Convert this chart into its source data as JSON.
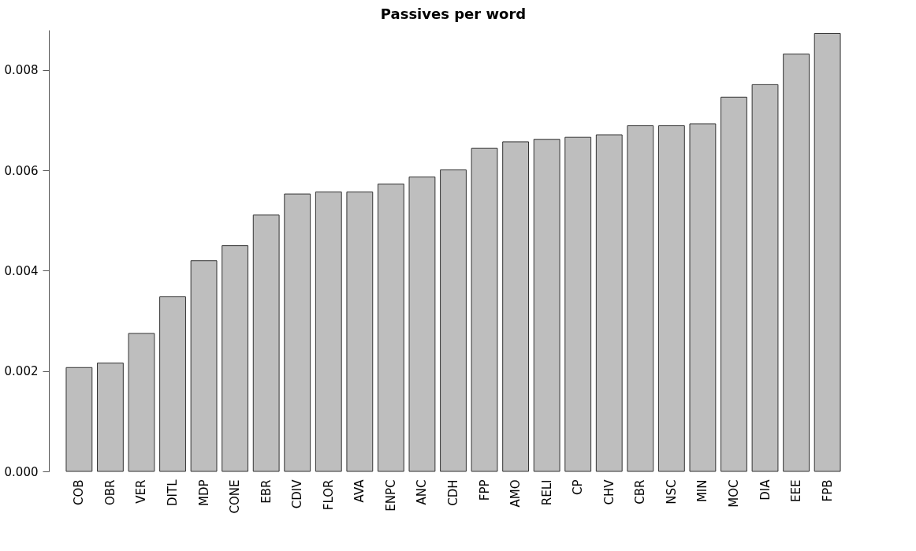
{
  "chart_data": {
    "type": "bar",
    "title": "Passives per word",
    "categories": [
      "COB",
      "OBR",
      "VER",
      "DITL",
      "MDP",
      "CONE",
      "EBR",
      "CDIV",
      "FLOR",
      "AVA",
      "ENPC",
      "ANC",
      "CDH",
      "FPP",
      "AMO",
      "RELI",
      "CP",
      "CHV",
      "CBR",
      "NSC",
      "MIN",
      "MOC",
      "DIA",
      "EEE",
      "FPB"
    ],
    "values": [
      0.00207,
      0.00216,
      0.00275,
      0.00348,
      0.0042,
      0.0045,
      0.00511,
      0.00553,
      0.00557,
      0.00557,
      0.00573,
      0.00587,
      0.00601,
      0.00644,
      0.00657,
      0.00662,
      0.00666,
      0.00671,
      0.00689,
      0.00689,
      0.00693,
      0.00746,
      0.00771,
      0.00832,
      0.00873
    ],
    "color": "#bebebe",
    "ylim": [
      0,
      0.0088
    ],
    "yticks": [
      {
        "value": 0,
        "label": "0.000"
      },
      {
        "value": 0.002,
        "label": "0.002"
      },
      {
        "value": 0.004,
        "label": "0.004"
      },
      {
        "value": 0.006,
        "label": "0.006"
      },
      {
        "value": 0.008,
        "label": "0.008"
      }
    ],
    "grid": false
  }
}
